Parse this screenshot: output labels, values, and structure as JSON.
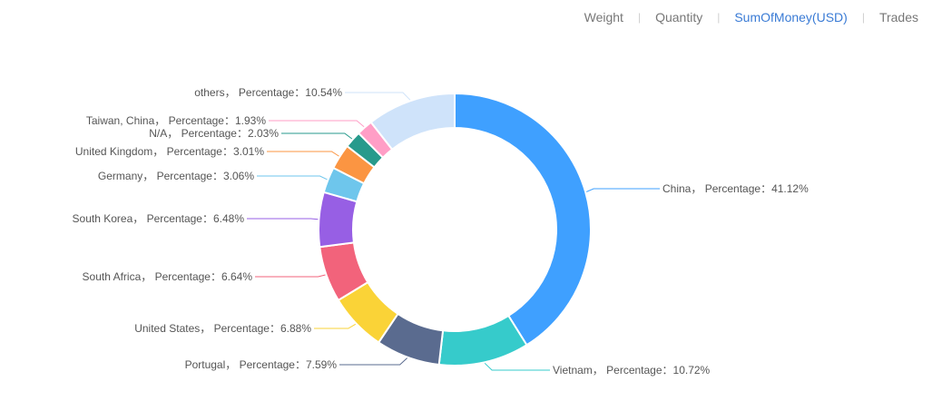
{
  "tabs": [
    {
      "label": "Weight",
      "active": false
    },
    {
      "label": "Quantity",
      "active": false
    },
    {
      "label": "SumOfMoney(USD)",
      "active": true
    },
    {
      "label": "Trades",
      "active": false
    }
  ],
  "colors": {
    "accent": "#3a7bd5"
  },
  "chart_data": {
    "type": "pie",
    "variant": "donut",
    "label_separator": "， Percentage：",
    "unit": "%",
    "slices": [
      {
        "label": "China",
        "value": 41.12,
        "color": "#3fa0ff"
      },
      {
        "label": "Vietnam",
        "value": 10.72,
        "color": "#36cbcb"
      },
      {
        "label": "Portugal",
        "value": 7.59,
        "color": "#5a6b8f"
      },
      {
        "label": "United States",
        "value": 6.88,
        "color": "#fad337"
      },
      {
        "label": "South Africa",
        "value": 6.64,
        "color": "#f2637b"
      },
      {
        "label": "South Korea",
        "value": 6.48,
        "color": "#975fe4"
      },
      {
        "label": "Germany",
        "value": 3.06,
        "color": "#6ec6ec"
      },
      {
        "label": "United Kingdom",
        "value": 3.01,
        "color": "#fb9542"
      },
      {
        "label": "N/A",
        "value": 2.03,
        "color": "#279a8c"
      },
      {
        "label": "Taiwan, China",
        "value": 1.93,
        "color": "#ff9ec6"
      },
      {
        "label": "others",
        "value": 10.54,
        "color": "#cfe3fa"
      }
    ]
  }
}
